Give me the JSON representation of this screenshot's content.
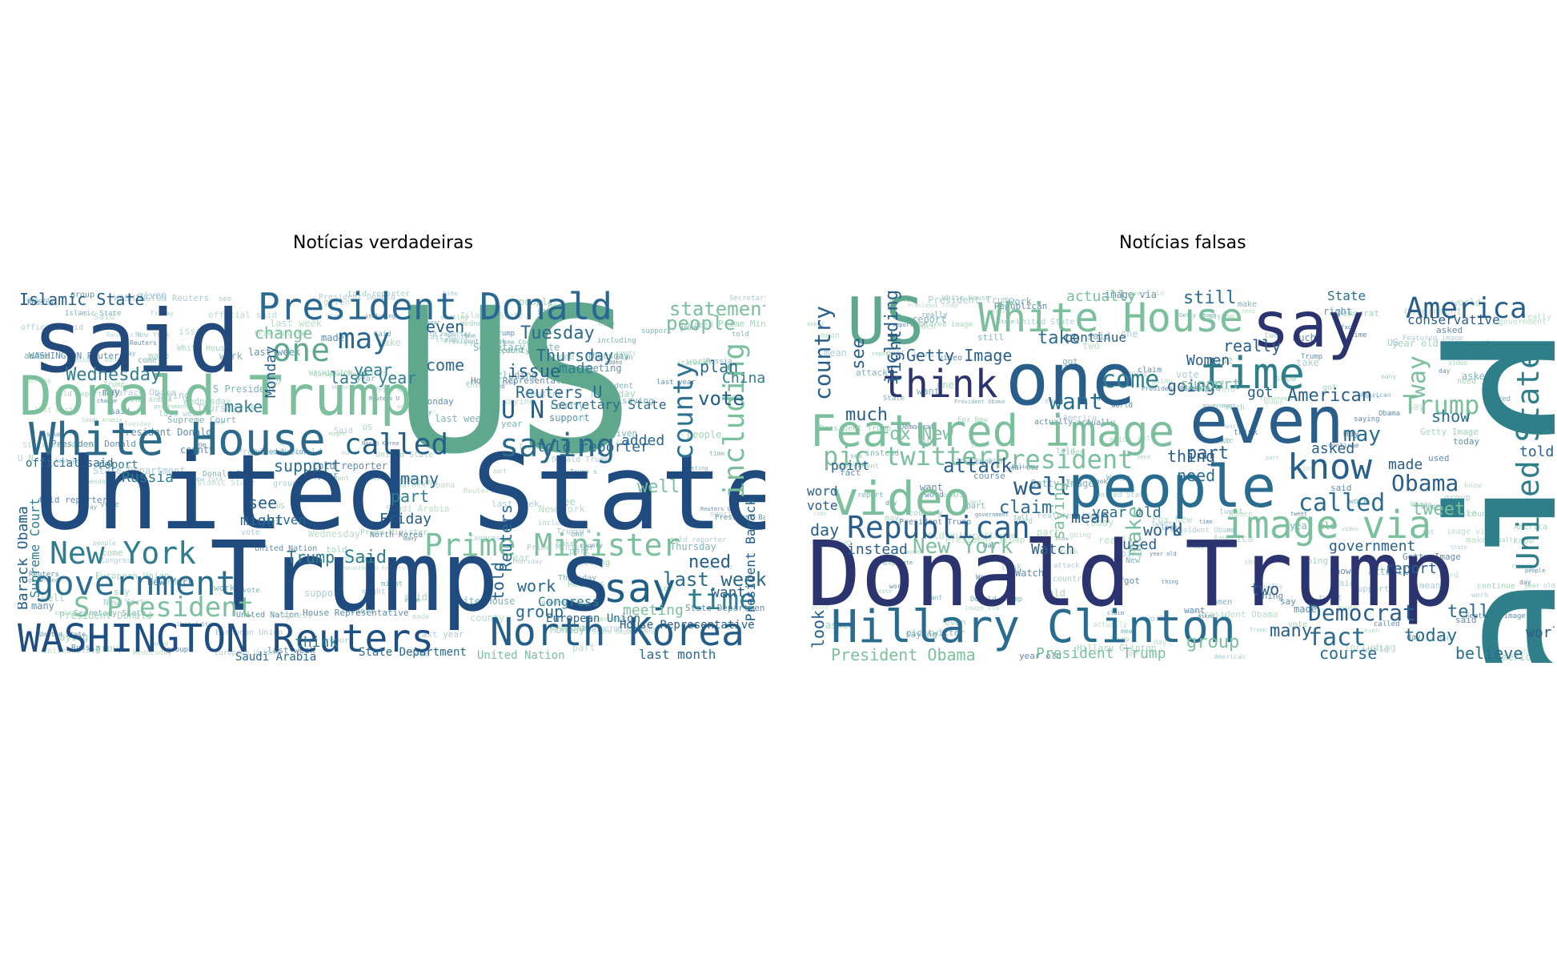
{
  "figure": {
    "panels": [
      {
        "title": "Notícias verdadeiras",
        "words": [
          {
            "text": "US",
            "color": "#5fa88e"
          },
          {
            "text": "said",
            "color": "#234a7c"
          },
          {
            "text": "United State",
            "color": "#1f4b7e"
          },
          {
            "text": "Trump s",
            "color": "#1f4b7e"
          },
          {
            "text": "Donald Trump",
            "color": "#7bbf9d"
          },
          {
            "text": "White House",
            "color": "#2c6a8c"
          },
          {
            "text": "President Donald",
            "color": "#2a6891"
          },
          {
            "text": "WASHINGTON Reuters",
            "color": "#1f4f82"
          },
          {
            "text": "North Korea",
            "color": "#245d88"
          },
          {
            "text": "government",
            "color": "#2a6c90"
          },
          {
            "text": "New York",
            "color": "#2f7d8f"
          },
          {
            "text": "Prime Minister",
            "color": "#7bbf9d"
          },
          {
            "text": "say",
            "color": "#1f5f87"
          },
          {
            "text": "saying",
            "color": "#2c6a8c"
          },
          {
            "text": "called",
            "color": "#245d88"
          },
          {
            "text": "one",
            "color": "#5fa88e"
          },
          {
            "text": "may",
            "color": "#2a6891"
          },
          {
            "text": "county",
            "color": "#2c7190"
          },
          {
            "text": "including",
            "color": "#7bbf9d"
          },
          {
            "text": "S President",
            "color": "#7bbf9d"
          },
          {
            "text": "time",
            "color": "#2f7d8f"
          },
          {
            "text": "U N",
            "color": "#245d88"
          },
          {
            "text": "Reuters U",
            "color": "#2a6891"
          },
          {
            "text": "Islamic State",
            "color": "#245d88"
          },
          {
            "text": "statement",
            "color": "#7bbf9d"
          },
          {
            "text": "people",
            "color": "#7bbf9d"
          },
          {
            "text": "last week",
            "color": "#2c6a8c"
          },
          {
            "text": "Wednesday",
            "color": "#2f7d8f"
          },
          {
            "text": "Tuesday",
            "color": "#2c6a8c"
          },
          {
            "text": "Thursday",
            "color": "#2c6a8c"
          },
          {
            "text": "plan",
            "color": "#2c6a8c"
          },
          {
            "text": "vote",
            "color": "#245d88"
          },
          {
            "text": "China",
            "color": "#2f7d8f"
          },
          {
            "text": "Russia",
            "color": "#2f7d8f"
          },
          {
            "text": "support",
            "color": "#2c6a8c"
          },
          {
            "text": "many",
            "color": "#2a6891"
          },
          {
            "text": "added",
            "color": "#2a6891"
          },
          {
            "text": "told reporter",
            "color": "#2a6891"
          },
          {
            "text": "Secretary State",
            "color": "#2c6a8c"
          },
          {
            "text": "issue",
            "color": "#245d88"
          },
          {
            "text": "made",
            "color": "#2f7d8f"
          },
          {
            "text": "last year",
            "color": "#2f7d8f"
          },
          {
            "text": "last month",
            "color": "#2a6891"
          },
          {
            "text": "Friday",
            "color": "#245d88"
          },
          {
            "text": "part",
            "color": "#2f7d8f"
          },
          {
            "text": "Said",
            "color": "#2f7d8f"
          },
          {
            "text": "Trump",
            "color": "#2f7d8f"
          },
          {
            "text": "think",
            "color": "#2f7d8f"
          },
          {
            "text": "need",
            "color": "#245d88"
          },
          {
            "text": "want",
            "color": "#245d88"
          },
          {
            "text": "group",
            "color": "#2a6891"
          },
          {
            "text": "work",
            "color": "#2a6891"
          },
          {
            "text": "Congress",
            "color": "#2f7d8f"
          },
          {
            "text": "meeting",
            "color": "#7bbf9d"
          },
          {
            "text": "House Representative",
            "color": "#245d88"
          },
          {
            "text": "European Union",
            "color": "#2a6891"
          },
          {
            "text": "Barack Obama",
            "color": "#245d88"
          },
          {
            "text": "Supreme Court",
            "color": "#2f7d8f"
          },
          {
            "text": "President Barack",
            "color": "#245d88"
          },
          {
            "text": "told",
            "color": "#245d88"
          },
          {
            "text": "Reuters",
            "color": "#2a6891"
          },
          {
            "text": "Monday",
            "color": "#245d88"
          },
          {
            "text": "change",
            "color": "#7bbf9d"
          },
          {
            "text": "make",
            "color": "#2f7d8f"
          },
          {
            "text": "see",
            "color": "#245d88"
          },
          {
            "text": "might",
            "color": "#2a6891"
          },
          {
            "text": "given",
            "color": "#2a6891"
          },
          {
            "text": "year",
            "color": "#2f7d8f"
          },
          {
            "text": "even",
            "color": "#245d88"
          },
          {
            "text": "come",
            "color": "#2a6891"
          },
          {
            "text": "well",
            "color": "#7bbf9d"
          },
          {
            "text": "Saudi Arabia",
            "color": "#2a6891"
          },
          {
            "text": "United Nation",
            "color": "#7bbf9d"
          },
          {
            "text": "State Department",
            "color": "#2a6891"
          },
          {
            "text": "official said",
            "color": "#2a6891"
          },
          {
            "text": "report",
            "color": "#2f7d8f"
          }
        ]
      },
      {
        "title": "Notícias falsas",
        "words": [
          {
            "text": "said",
            "color": "#2f7f8a"
          },
          {
            "text": "Donald Trump",
            "color": "#2b346e"
          },
          {
            "text": "one",
            "color": "#2a5e8a"
          },
          {
            "text": "say",
            "color": "#2b346e"
          },
          {
            "text": "White House",
            "color": "#7bbf9d"
          },
          {
            "text": "even",
            "color": "#2a5e8a"
          },
          {
            "text": "people",
            "color": "#2a6c90"
          },
          {
            "text": "Featured image",
            "color": "#7bbf9d"
          },
          {
            "text": "Hillary Clinton",
            "color": "#2a6c90"
          },
          {
            "text": "US",
            "color": "#5fa88e"
          },
          {
            "text": "think",
            "color": "#2b346e"
          },
          {
            "text": "time",
            "color": "#2f7f8a"
          },
          {
            "text": "video",
            "color": "#7bbf9d"
          },
          {
            "text": "know",
            "color": "#2a5e8a"
          },
          {
            "text": "image via",
            "color": "#7bbf9d"
          },
          {
            "text": "Republican",
            "color": "#2a5e8a"
          },
          {
            "text": "pic twitter",
            "color": "#7bbf9d"
          },
          {
            "text": "President",
            "color": "#7bbf9d"
          },
          {
            "text": "America",
            "color": "#2a5e8a"
          },
          {
            "text": "United State",
            "color": "#2f7f8a"
          },
          {
            "text": "Trump",
            "color": "#7bbf9d"
          },
          {
            "text": "Obama",
            "color": "#2a5e8a"
          },
          {
            "text": "called",
            "color": "#2a6c90"
          },
          {
            "text": "Democrat",
            "color": "#2a5e8a"
          },
          {
            "text": "fact",
            "color": "#2a6c90"
          },
          {
            "text": "well",
            "color": "#2a5e8a"
          },
          {
            "text": "want",
            "color": "#2a6c90"
          },
          {
            "text": "come",
            "color": "#2f7f8a"
          },
          {
            "text": "may",
            "color": "#2a6c90"
          },
          {
            "text": "Getty Image",
            "color": "#2a5e8a"
          },
          {
            "text": "Fox New",
            "color": "#7bbf9d"
          },
          {
            "text": "New York",
            "color": "#7bbf9d"
          },
          {
            "text": "American",
            "color": "#2a5e8a"
          },
          {
            "text": "country",
            "color": "#2a5e8a"
          },
          {
            "text": "including",
            "color": "#2a5e8a"
          },
          {
            "text": "right",
            "color": "#2a5e8a"
          },
          {
            "text": "see",
            "color": "#2a5e8a"
          },
          {
            "text": "much",
            "color": "#2a5e8a"
          },
          {
            "text": "attack",
            "color": "#2a5e8a"
          },
          {
            "text": "claim",
            "color": "#2a6c90"
          },
          {
            "text": "part",
            "color": "#2a5e8a"
          },
          {
            "text": "thing",
            "color": "#2a5e8a"
          },
          {
            "text": "need",
            "color": "#2a6c90"
          },
          {
            "text": "take",
            "color": "#2a6c90"
          },
          {
            "text": "still",
            "color": "#2a6c90"
          },
          {
            "text": "actually",
            "color": "#7bbf9d"
          },
          {
            "text": "make",
            "color": "#7bbf9d"
          },
          {
            "text": "way",
            "color": "#7bbf9d"
          },
          {
            "text": "show",
            "color": "#2a6c90"
          },
          {
            "text": "tell",
            "color": "#2a6c90"
          },
          {
            "text": "today",
            "color": "#2a6c90"
          },
          {
            "text": "course",
            "color": "#2a6c90"
          },
          {
            "text": "group",
            "color": "#7bbf9d"
          },
          {
            "text": "President Obama",
            "color": "#7bbf9d"
          },
          {
            "text": "President Trump",
            "color": "#7bbf9d"
          },
          {
            "text": "believe",
            "color": "#2a6c90"
          },
          {
            "text": "look",
            "color": "#2a5e8a"
          },
          {
            "text": "day",
            "color": "#2a5e8a"
          },
          {
            "text": "instead",
            "color": "#2a5e8a"
          },
          {
            "text": "Watch",
            "color": "#2a5e8a"
          },
          {
            "text": "mean",
            "color": "#2a5e8a"
          },
          {
            "text": "work",
            "color": "#2a5e8a"
          },
          {
            "text": "U",
            "color": "#2a5e8a"
          },
          {
            "text": "year old",
            "color": "#2a6c90"
          },
          {
            "text": "used",
            "color": "#2a5e8a"
          },
          {
            "text": "report",
            "color": "#2a5e8a"
          },
          {
            "text": "government",
            "color": "#2a5e8a"
          },
          {
            "text": "asked",
            "color": "#2a5e8a"
          },
          {
            "text": "made",
            "color": "#2a5e8a"
          },
          {
            "text": "told",
            "color": "#2a5e8a"
          },
          {
            "text": "going",
            "color": "#2a5e8a"
          },
          {
            "text": "really",
            "color": "#2a5e8a"
          },
          {
            "text": "continue",
            "color": "#2a5e8a"
          },
          {
            "text": "conservative",
            "color": "#2a5e8a"
          },
          {
            "text": "many",
            "color": "#2a5e8a"
          },
          {
            "text": "two",
            "color": "#2a5e8a"
          },
          {
            "text": "world",
            "color": "#2a5e8a"
          },
          {
            "text": "State",
            "color": "#2a6c90"
          },
          {
            "text": "saying",
            "color": "#7bbf9d"
          },
          {
            "text": "Women",
            "color": "#2a5e8a"
          },
          {
            "text": "support",
            "color": "#7bbf9d"
          },
          {
            "text": "got",
            "color": "#2a5e8a"
          },
          {
            "text": "tweet",
            "color": "#7bbf9d"
          },
          {
            "text": "point",
            "color": "#2a5e8a"
          },
          {
            "text": "word",
            "color": "#2a5e8a"
          },
          {
            "text": "vote",
            "color": "#2a5e8a"
          }
        ]
      }
    ]
  }
}
